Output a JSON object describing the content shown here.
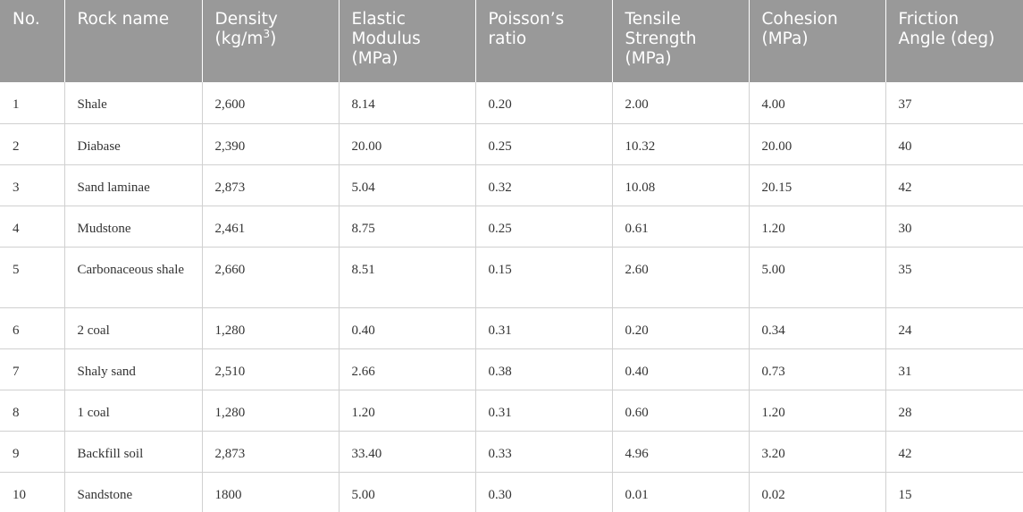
{
  "table": {
    "headers": [
      "No.",
      "Rock name",
      "Density",
      "Elastic Modulus (MPa)",
      "Poisson’s ratio",
      "Tensile Strength (MPa)",
      "Cohesion (MPa)",
      "Friction Angle (deg)"
    ],
    "density_unit_base": "(kg/m",
    "density_unit_exp": "3",
    "density_unit_close": ")",
    "rows": [
      [
        "1",
        "Shale",
        "2,600",
        "8.14",
        "0.20",
        "2.00",
        "4.00",
        "37"
      ],
      [
        "2",
        "Diabase",
        "2,390",
        "20.00",
        "0.25",
        "10.32",
        "20.00",
        "40"
      ],
      [
        "3",
        "Sand laminae",
        "2,873",
        "5.04",
        "0.32",
        "10.08",
        "20.15",
        "42"
      ],
      [
        "4",
        "Mudstone",
        "2,461",
        "8.75",
        "0.25",
        "0.61",
        "1.20",
        "30"
      ],
      [
        "5",
        "Carbonaceous shale",
        "2,660",
        "8.51",
        "0.15",
        "2.60",
        "5.00",
        "35"
      ],
      [
        "6",
        "2 coal",
        "1,280",
        "0.40",
        "0.31",
        "0.20",
        "0.34",
        "24"
      ],
      [
        "7",
        "Shaly sand",
        "2,510",
        "2.66",
        "0.38",
        "0.40",
        "0.73",
        "31"
      ],
      [
        "8",
        "1 coal",
        "1,280",
        "1.20",
        "0.31",
        "0.60",
        "1.20",
        "28"
      ],
      [
        "9",
        "Backfill soil",
        "2,873",
        "33.40",
        "0.33",
        "4.96",
        "3.20",
        "42"
      ],
      [
        "10",
        "Sandstone",
        "1800",
        "5.00",
        "0.30",
        "0.01",
        "0.02",
        "15"
      ]
    ]
  }
}
